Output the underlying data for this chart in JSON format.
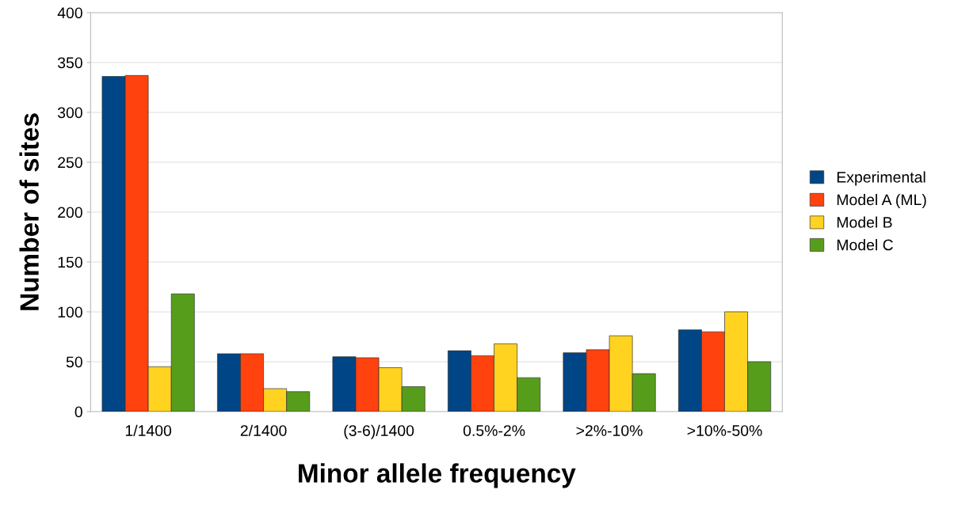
{
  "chart_data": {
    "type": "bar",
    "xlabel": "Minor allele frequency",
    "ylabel": "Number of sites",
    "categories": [
      "1/1400",
      "2/1400",
      "(3-6)/1400",
      "0.5%-2%",
      ">2%-10%",
      ">10%-50%"
    ],
    "series": [
      {
        "name": "Experimental",
        "color": "#004586",
        "values": [
          336,
          58,
          55,
          61,
          59,
          82
        ]
      },
      {
        "name": "Model A (ML)",
        "color": "#ff420e",
        "values": [
          337,
          58,
          54,
          56,
          62,
          80
        ]
      },
      {
        "name": "Model B",
        "color": "#ffd320",
        "values": [
          45,
          23,
          44,
          68,
          76,
          100
        ]
      },
      {
        "name": "Model C",
        "color": "#579d1c",
        "values": [
          118,
          20,
          25,
          34,
          38,
          50
        ]
      }
    ],
    "ylim": [
      0,
      400
    ],
    "yticks": [
      0,
      50,
      100,
      150,
      200,
      250,
      300,
      350,
      400
    ],
    "grid": "y",
    "legend": "right"
  }
}
